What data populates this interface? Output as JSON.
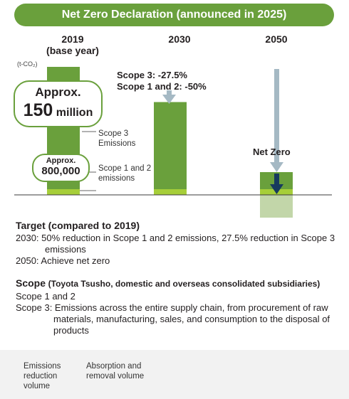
{
  "banner": {
    "title": "Net Zero Declaration (announced in 2025)"
  },
  "years": {
    "y2019": "2019",
    "y2019_sub": "(base year)",
    "y2030": "2030",
    "y2050": "2050"
  },
  "unit": "(t-CO₂)",
  "bubbles": {
    "scope3": {
      "approx": "Approx.",
      "value": "150",
      "unit": "million"
    },
    "scope12": {
      "approx": "Approx.",
      "value": "800,000"
    }
  },
  "labels": {
    "scope3": "Scope 3 Emissions",
    "scope12": "Scope 1 and 2 emissions",
    "net_zero": "Net Zero",
    "target_2030_scope3": "Scope 3: -27.5%",
    "target_2030_scope12": "Scope 1 and 2: -50%"
  },
  "chart_data": {
    "type": "bar",
    "unit": "t-CO₂",
    "categories": [
      "2019",
      "2030",
      "2050"
    ],
    "series": [
      {
        "name": "Scope 3 Emissions",
        "values": [
          150000000,
          108750000,
          0
        ]
      },
      {
        "name": "Scope 1 and 2 emissions",
        "values": [
          800000,
          400000,
          0
        ]
      }
    ],
    "reductions_2030": {
      "scope3_percent": -27.5,
      "scope12_percent": -50
    },
    "legend": [
      {
        "name": "Emissions reduction volume",
        "color": "#a5b9c4"
      },
      {
        "name": "Absorption and removal volume",
        "color": "#173a5e"
      }
    ],
    "colors": {
      "scope3": "#6aa03c",
      "scope12": "#a6ce39",
      "offset": "#c2d6a9",
      "reduction_arrow": "#a5b9c4",
      "removal_arrow": "#173a5e"
    }
  },
  "target": {
    "heading": "Target (compared to 2019)",
    "line_2030": "2030: 50% reduction in Scope 1 and 2 emissions, 27.5% reduction in Scope 3 emissions",
    "line_2050": "2050: Achieve net zero"
  },
  "scope": {
    "heading": "Scope",
    "heading_detail": "(Toyota Tsusho, domestic and overseas consolidated subsidiaries)",
    "line1": "Scope 1 and 2",
    "line2": "Scope 3: Emissions across the entire supply chain, from procurement of raw materials, manufacturing, sales, and consumption to the disposal of products"
  },
  "legend": {
    "reduction": "Emissions reduction volume",
    "removal": "Absorption and removal volume"
  }
}
